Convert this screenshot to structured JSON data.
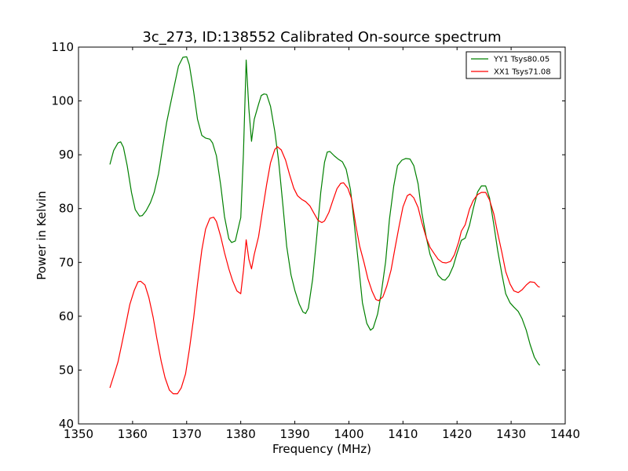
{
  "chart_data": {
    "type": "line",
    "title": "3c_273, ID:138552 Calibrated On-source spectrum",
    "xlabel": "Frequency (MHz)",
    "ylabel": "Power in Kelvin",
    "xlim": [
      1350,
      1440
    ],
    "ylim": [
      40,
      110
    ],
    "xticks": [
      1350,
      1360,
      1370,
      1380,
      1390,
      1400,
      1410,
      1420,
      1430,
      1440
    ],
    "yticks": [
      40,
      50,
      60,
      70,
      80,
      90,
      100,
      110
    ],
    "grid": false,
    "legend_position": "top-right",
    "series": [
      {
        "name": "YY1 Tsys80.05",
        "color": "#008000",
        "points": [
          [
            1355.8,
            88.2
          ],
          [
            1356.5,
            90.8
          ],
          [
            1357.3,
            92.2
          ],
          [
            1357.8,
            92.4
          ],
          [
            1358.3,
            91.4
          ],
          [
            1359.0,
            88.0
          ],
          [
            1359.8,
            83.0
          ],
          [
            1360.5,
            79.8
          ],
          [
            1361.3,
            78.6
          ],
          [
            1361.8,
            78.7
          ],
          [
            1362.5,
            79.6
          ],
          [
            1363.3,
            81.1
          ],
          [
            1364.0,
            83.0
          ],
          [
            1364.8,
            86.5
          ],
          [
            1365.5,
            91.0
          ],
          [
            1366.3,
            96.0
          ],
          [
            1367.0,
            99.4
          ],
          [
            1367.8,
            103.2
          ],
          [
            1368.5,
            106.5
          ],
          [
            1369.3,
            108.1
          ],
          [
            1370.0,
            108.2
          ],
          [
            1370.5,
            106.7
          ],
          [
            1371.3,
            101.7
          ],
          [
            1372.0,
            96.6
          ],
          [
            1372.8,
            93.6
          ],
          [
            1373.5,
            93.1
          ],
          [
            1374.3,
            92.9
          ],
          [
            1374.8,
            92.2
          ],
          [
            1375.5,
            89.8
          ],
          [
            1376.3,
            84.3
          ],
          [
            1377.0,
            78.5
          ],
          [
            1377.8,
            74.4
          ],
          [
            1378.3,
            73.7
          ],
          [
            1379.0,
            74.0
          ],
          [
            1379.8,
            77.5
          ],
          [
            1380.0,
            78.3
          ],
          [
            1380.5,
            90.2
          ],
          [
            1381.0,
            107.6
          ],
          [
            1381.5,
            98.6
          ],
          [
            1382.0,
            92.5
          ],
          [
            1382.5,
            96.6
          ],
          [
            1383.3,
            99.4
          ],
          [
            1383.8,
            101.0
          ],
          [
            1384.3,
            101.3
          ],
          [
            1384.8,
            101.2
          ],
          [
            1385.5,
            99.0
          ],
          [
            1386.3,
            94.3
          ],
          [
            1387.0,
            88.9
          ],
          [
            1387.8,
            80.6
          ],
          [
            1388.5,
            73.0
          ],
          [
            1389.3,
            67.7
          ],
          [
            1390.0,
            64.8
          ],
          [
            1390.8,
            62.3
          ],
          [
            1391.5,
            60.8
          ],
          [
            1392.0,
            60.5
          ],
          [
            1392.5,
            61.5
          ],
          [
            1393.3,
            66.9
          ],
          [
            1394.0,
            74.2
          ],
          [
            1394.8,
            83.0
          ],
          [
            1395.5,
            88.6
          ],
          [
            1396.0,
            90.5
          ],
          [
            1396.5,
            90.6
          ],
          [
            1397.3,
            89.8
          ],
          [
            1398.0,
            89.2
          ],
          [
            1398.8,
            88.7
          ],
          [
            1399.5,
            87.3
          ],
          [
            1400.3,
            83.5
          ],
          [
            1401.0,
            77.2
          ],
          [
            1401.8,
            69.5
          ],
          [
            1402.5,
            62.5
          ],
          [
            1403.3,
            58.7
          ],
          [
            1404.0,
            57.4
          ],
          [
            1404.5,
            57.8
          ],
          [
            1405.3,
            60.4
          ],
          [
            1406.0,
            64.4
          ],
          [
            1406.8,
            70.2
          ],
          [
            1407.5,
            78.0
          ],
          [
            1408.3,
            84.2
          ],
          [
            1409.0,
            88.0
          ],
          [
            1409.8,
            89.0
          ],
          [
            1410.5,
            89.3
          ],
          [
            1411.3,
            89.2
          ],
          [
            1412.0,
            88.0
          ],
          [
            1412.8,
            84.6
          ],
          [
            1413.5,
            79.2
          ],
          [
            1414.3,
            74.7
          ],
          [
            1415.0,
            71.5
          ],
          [
            1415.8,
            69.4
          ],
          [
            1416.5,
            67.6
          ],
          [
            1417.3,
            66.8
          ],
          [
            1417.8,
            66.7
          ],
          [
            1418.5,
            67.5
          ],
          [
            1419.3,
            69.3
          ],
          [
            1420.0,
            71.7
          ],
          [
            1420.8,
            74.1
          ],
          [
            1421.5,
            74.5
          ],
          [
            1422.3,
            76.9
          ],
          [
            1423.0,
            80.0
          ],
          [
            1423.8,
            83.1
          ],
          [
            1424.5,
            84.2
          ],
          [
            1425.3,
            84.2
          ],
          [
            1426.0,
            82.0
          ],
          [
            1426.8,
            77.0
          ],
          [
            1427.5,
            72.3
          ],
          [
            1428.3,
            67.8
          ],
          [
            1429.0,
            64.2
          ],
          [
            1429.8,
            62.5
          ],
          [
            1430.5,
            61.7
          ],
          [
            1431.3,
            60.9
          ],
          [
            1432.0,
            59.6
          ],
          [
            1432.8,
            57.4
          ],
          [
            1433.5,
            54.8
          ],
          [
            1434.3,
            52.4
          ],
          [
            1435.0,
            51.2
          ],
          [
            1435.3,
            50.9
          ]
        ]
      },
      {
        "name": "XX1 Tsys71.08",
        "color": "#ff0000",
        "points": [
          [
            1355.8,
            46.7
          ],
          [
            1356.5,
            48.9
          ],
          [
            1357.3,
            51.5
          ],
          [
            1358.0,
            54.8
          ],
          [
            1358.8,
            58.7
          ],
          [
            1359.5,
            62.2
          ],
          [
            1360.3,
            64.8
          ],
          [
            1361.0,
            66.4
          ],
          [
            1361.5,
            66.5
          ],
          [
            1362.3,
            65.8
          ],
          [
            1363.0,
            63.5
          ],
          [
            1363.8,
            59.8
          ],
          [
            1364.5,
            55.8
          ],
          [
            1365.3,
            51.6
          ],
          [
            1366.0,
            48.6
          ],
          [
            1366.8,
            46.3
          ],
          [
            1367.5,
            45.6
          ],
          [
            1368.3,
            45.6
          ],
          [
            1369.0,
            46.7
          ],
          [
            1369.8,
            49.3
          ],
          [
            1370.5,
            53.8
          ],
          [
            1371.3,
            59.7
          ],
          [
            1372.0,
            66.0
          ],
          [
            1372.8,
            72.3
          ],
          [
            1373.5,
            76.2
          ],
          [
            1374.3,
            78.2
          ],
          [
            1375.0,
            78.4
          ],
          [
            1375.5,
            77.6
          ],
          [
            1376.3,
            74.8
          ],
          [
            1377.0,
            71.8
          ],
          [
            1377.8,
            68.8
          ],
          [
            1378.5,
            66.6
          ],
          [
            1379.3,
            64.7
          ],
          [
            1380.0,
            64.2
          ],
          [
            1380.5,
            68.5
          ],
          [
            1381.0,
            74.2
          ],
          [
            1381.5,
            70.6
          ],
          [
            1382.0,
            68.8
          ],
          [
            1382.5,
            71.5
          ],
          [
            1383.3,
            74.8
          ],
          [
            1384.0,
            79.4
          ],
          [
            1384.8,
            84.5
          ],
          [
            1385.5,
            88.5
          ],
          [
            1386.3,
            91.0
          ],
          [
            1386.8,
            91.5
          ],
          [
            1387.5,
            90.9
          ],
          [
            1388.3,
            89.0
          ],
          [
            1389.0,
            86.4
          ],
          [
            1389.8,
            83.8
          ],
          [
            1390.5,
            82.4
          ],
          [
            1391.3,
            81.7
          ],
          [
            1392.0,
            81.3
          ],
          [
            1392.8,
            80.5
          ],
          [
            1393.5,
            79.2
          ],
          [
            1394.3,
            77.8
          ],
          [
            1395.0,
            77.4
          ],
          [
            1395.5,
            77.7
          ],
          [
            1396.3,
            79.3
          ],
          [
            1397.0,
            81.4
          ],
          [
            1397.8,
            83.7
          ],
          [
            1398.5,
            84.7
          ],
          [
            1399.0,
            84.8
          ],
          [
            1399.8,
            83.8
          ],
          [
            1400.5,
            81.8
          ],
          [
            1401.3,
            76.8
          ],
          [
            1402.0,
            73.0
          ],
          [
            1402.8,
            70.0
          ],
          [
            1403.5,
            67.0
          ],
          [
            1404.3,
            64.6
          ],
          [
            1405.0,
            63.1
          ],
          [
            1405.5,
            62.9
          ],
          [
            1406.3,
            63.6
          ],
          [
            1407.0,
            65.6
          ],
          [
            1407.8,
            68.6
          ],
          [
            1408.5,
            72.5
          ],
          [
            1409.3,
            76.8
          ],
          [
            1410.0,
            80.3
          ],
          [
            1410.8,
            82.4
          ],
          [
            1411.3,
            82.7
          ],
          [
            1412.0,
            82.0
          ],
          [
            1412.8,
            80.2
          ],
          [
            1413.5,
            77.4
          ],
          [
            1414.3,
            74.6
          ],
          [
            1415.0,
            72.8
          ],
          [
            1415.8,
            71.6
          ],
          [
            1416.5,
            70.6
          ],
          [
            1417.3,
            70.0
          ],
          [
            1418.0,
            69.9
          ],
          [
            1418.8,
            70.2
          ],
          [
            1419.5,
            71.4
          ],
          [
            1420.3,
            73.8
          ],
          [
            1420.8,
            75.8
          ],
          [
            1421.5,
            77.0
          ],
          [
            1422.3,
            79.9
          ],
          [
            1423.0,
            81.5
          ],
          [
            1423.8,
            82.6
          ],
          [
            1424.5,
            83.0
          ],
          [
            1425.3,
            83.0
          ],
          [
            1426.0,
            81.6
          ],
          [
            1426.8,
            79.0
          ],
          [
            1427.5,
            75.5
          ],
          [
            1428.3,
            71.8
          ],
          [
            1429.0,
            68.3
          ],
          [
            1429.8,
            66.0
          ],
          [
            1430.5,
            64.7
          ],
          [
            1431.3,
            64.4
          ],
          [
            1432.0,
            64.9
          ],
          [
            1432.8,
            65.8
          ],
          [
            1433.5,
            66.4
          ],
          [
            1434.3,
            66.3
          ],
          [
            1435.0,
            65.5
          ],
          [
            1435.3,
            65.4
          ]
        ]
      }
    ]
  }
}
